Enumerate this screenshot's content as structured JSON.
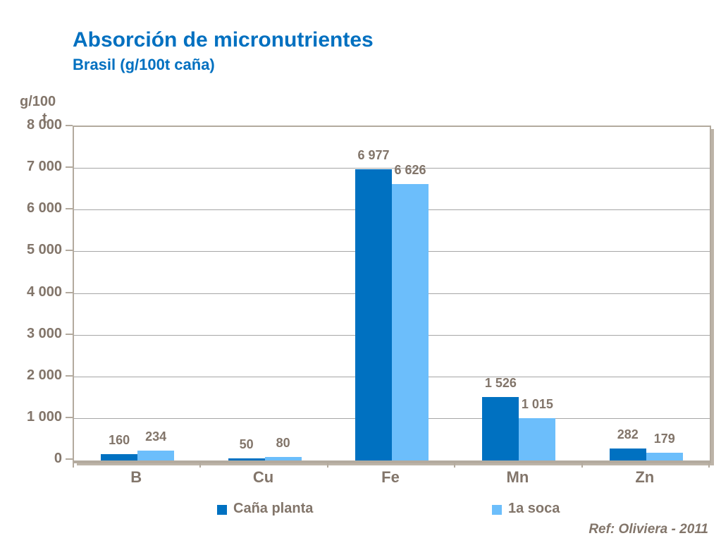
{
  "header": {
    "title": "Absorción de micronutrientes",
    "subtitle": "Brasil (g/100t caña)"
  },
  "chart_data": {
    "type": "bar",
    "title": "Absorción de micronutrientes",
    "subtitle": "Brasil (g/100t caña)",
    "categories": [
      "B",
      "Cu",
      "Fe",
      "Mn",
      "Zn"
    ],
    "series": [
      {
        "name": "Caña planta",
        "color": "#0071C1",
        "values": [
          160,
          50,
          6977,
          1526,
          282
        ]
      },
      {
        "name": "1a soca",
        "color": "#6CBEFB",
        "values": [
          234,
          80,
          6626,
          1015,
          179
        ]
      }
    ],
    "xlabel": "",
    "ylabel": "g/100 t",
    "ylabel_lines": [
      "g/100",
      "t"
    ],
    "ylim": [
      0,
      8000
    ],
    "ytick_step": 1000,
    "ytick_labels": [
      "0",
      "1 000",
      "2 000",
      "3 000",
      "4 000",
      "5 000",
      "6 000",
      "7 000",
      "8 000"
    ],
    "grid": true,
    "legend_position": "bottom",
    "data_labels": [
      [
        "160",
        "50",
        "6 977",
        "1 526",
        "282"
      ],
      [
        "234",
        "80",
        "6 626",
        "1 015",
        "179"
      ]
    ]
  },
  "legend": {
    "items": [
      {
        "label": "Caña planta",
        "color": "#0071C1"
      },
      {
        "label": "1a soca",
        "color": "#6CBEFB"
      }
    ]
  },
  "footer": {
    "ref": "Ref: Oliviera - 2011"
  },
  "colors": {
    "title": "#0070C0",
    "text": "#82756A",
    "gridline": "#A6A6A6",
    "frame": "#B3AA9E",
    "background": "#FFFFFF",
    "series1": "#0071C1",
    "series2": "#6CBEFB"
  }
}
